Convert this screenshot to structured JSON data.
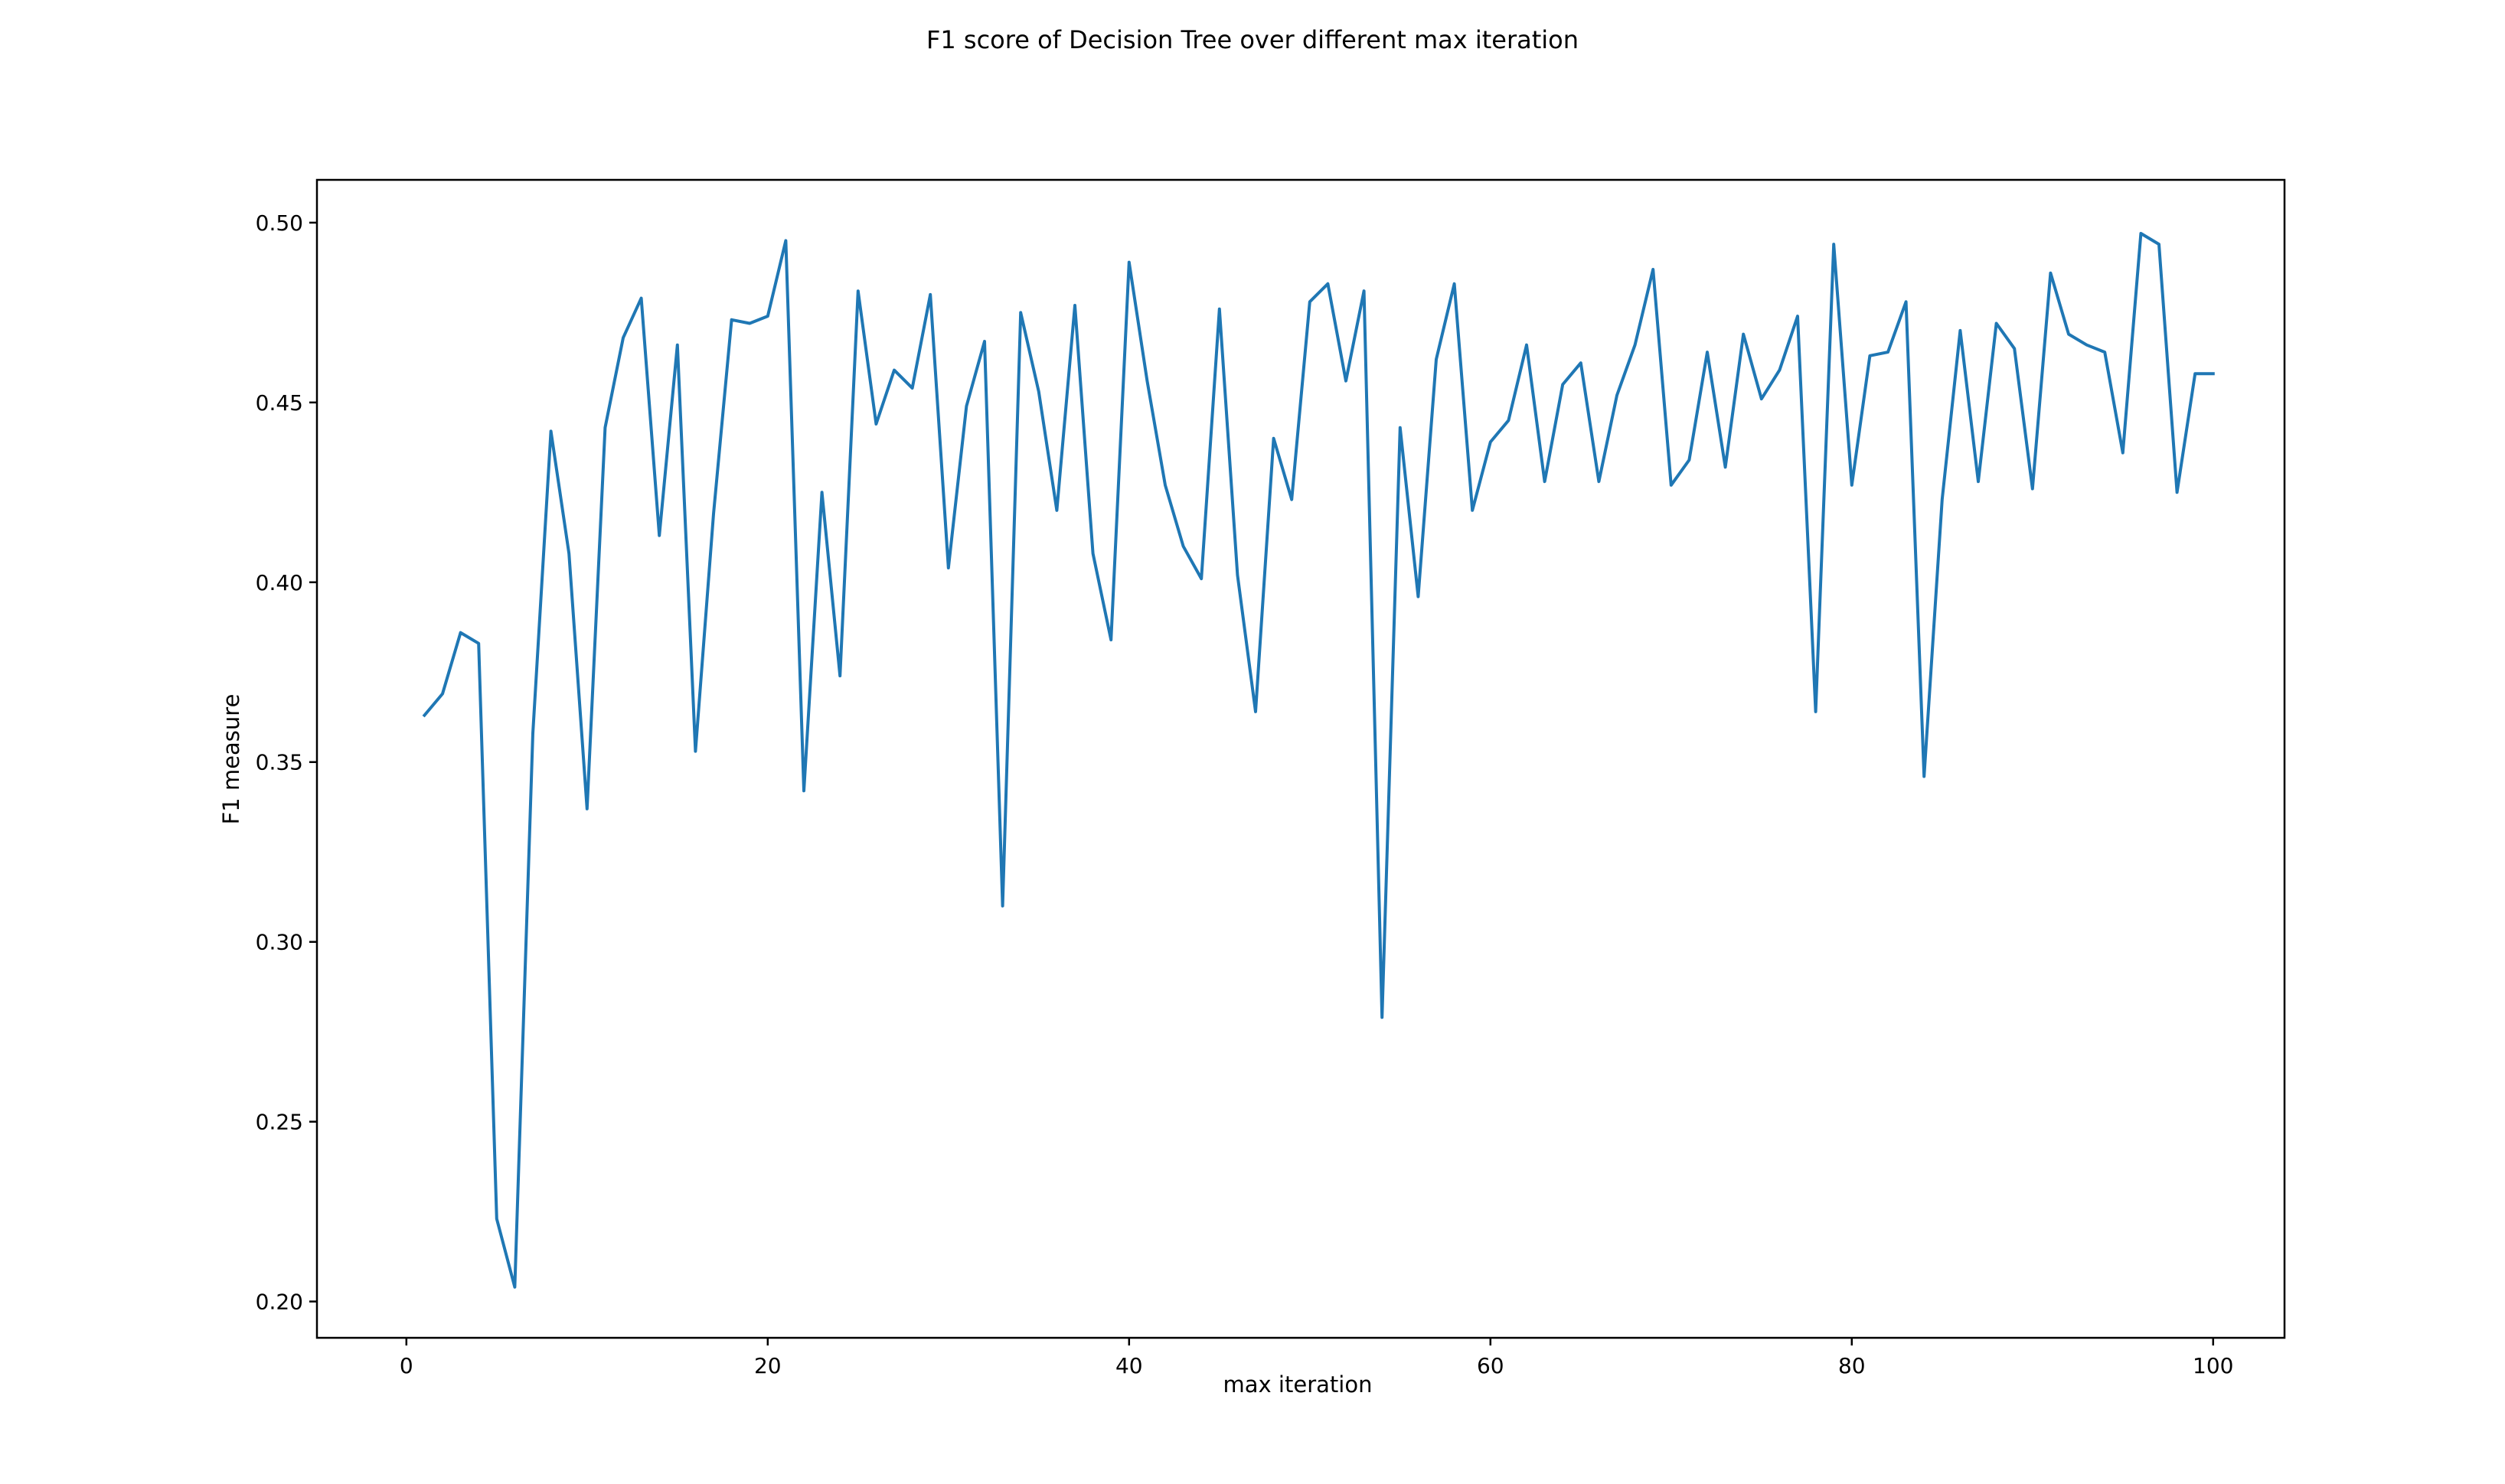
{
  "chart_data": {
    "type": "line",
    "title": "F1 score of Decision Tree over different max iteration",
    "xlabel": "max iteration",
    "ylabel": "F1 measure",
    "xlim": [
      -4.95,
      103.95
    ],
    "ylim": [
      0.1899,
      0.5119
    ],
    "xticks": [
      0,
      20,
      40,
      60,
      80,
      100
    ],
    "xtick_labels": [
      "0",
      "20",
      "40",
      "60",
      "80",
      "100"
    ],
    "yticks": [
      0.2,
      0.25,
      0.3,
      0.35,
      0.4,
      0.45,
      0.5
    ],
    "ytick_labels": [
      "0.20",
      "0.25",
      "0.30",
      "0.35",
      "0.40",
      "0.45",
      "0.50"
    ],
    "grid": false,
    "line_color": "#1f77b4",
    "series": [
      {
        "x": [
          1,
          2,
          3,
          4,
          5,
          6,
          7,
          8,
          9,
          10,
          11,
          12,
          13,
          14,
          15,
          16,
          17,
          18,
          19,
          20,
          21,
          22,
          23,
          24,
          25,
          26,
          27,
          28,
          29,
          30,
          31,
          32,
          33,
          34,
          35,
          36,
          37,
          38,
          39,
          40,
          41,
          42,
          43,
          44,
          45,
          46,
          47,
          48,
          49,
          50,
          51,
          52,
          53,
          54,
          55,
          56,
          57,
          58,
          59,
          60,
          61,
          62,
          63,
          64,
          65,
          66,
          67,
          68,
          69,
          70,
          71,
          72,
          73,
          74,
          75,
          76,
          77,
          78,
          79,
          80,
          81,
          82,
          83,
          84,
          85,
          86,
          87,
          88,
          89,
          90,
          91,
          92,
          93,
          94,
          95,
          96,
          97,
          98,
          99,
          100
        ],
        "values": [
          0.363,
          0.369,
          0.386,
          0.383,
          0.223,
          0.204,
          0.358,
          0.442,
          0.408,
          0.337,
          0.443,
          0.468,
          0.479,
          0.413,
          0.466,
          0.353,
          0.419,
          0.473,
          0.472,
          0.474,
          0.495,
          0.342,
          0.425,
          0.374,
          0.481,
          0.444,
          0.459,
          0.454,
          0.48,
          0.404,
          0.449,
          0.467,
          0.31,
          0.475,
          0.453,
          0.42,
          0.477,
          0.408,
          0.384,
          0.489,
          0.456,
          0.427,
          0.41,
          0.401,
          0.476,
          0.402,
          0.364,
          0.44,
          0.423,
          0.478,
          0.483,
          0.456,
          0.481,
          0.279,
          0.443,
          0.396,
          0.462,
          0.483,
          0.42,
          0.439,
          0.445,
          0.466,
          0.428,
          0.455,
          0.461,
          0.428,
          0.452,
          0.466,
          0.487,
          0.427,
          0.434,
          0.464,
          0.432,
          0.469,
          0.451,
          0.459,
          0.474,
          0.364,
          0.494,
          0.427,
          0.463,
          0.464,
          0.478,
          0.346,
          0.423,
          0.47,
          0.428,
          0.472,
          0.465,
          0.426,
          0.486,
          0.469,
          0.466,
          0.464,
          0.436,
          0.497,
          0.494,
          0.425,
          0.458,
          0.458
        ]
      }
    ]
  }
}
